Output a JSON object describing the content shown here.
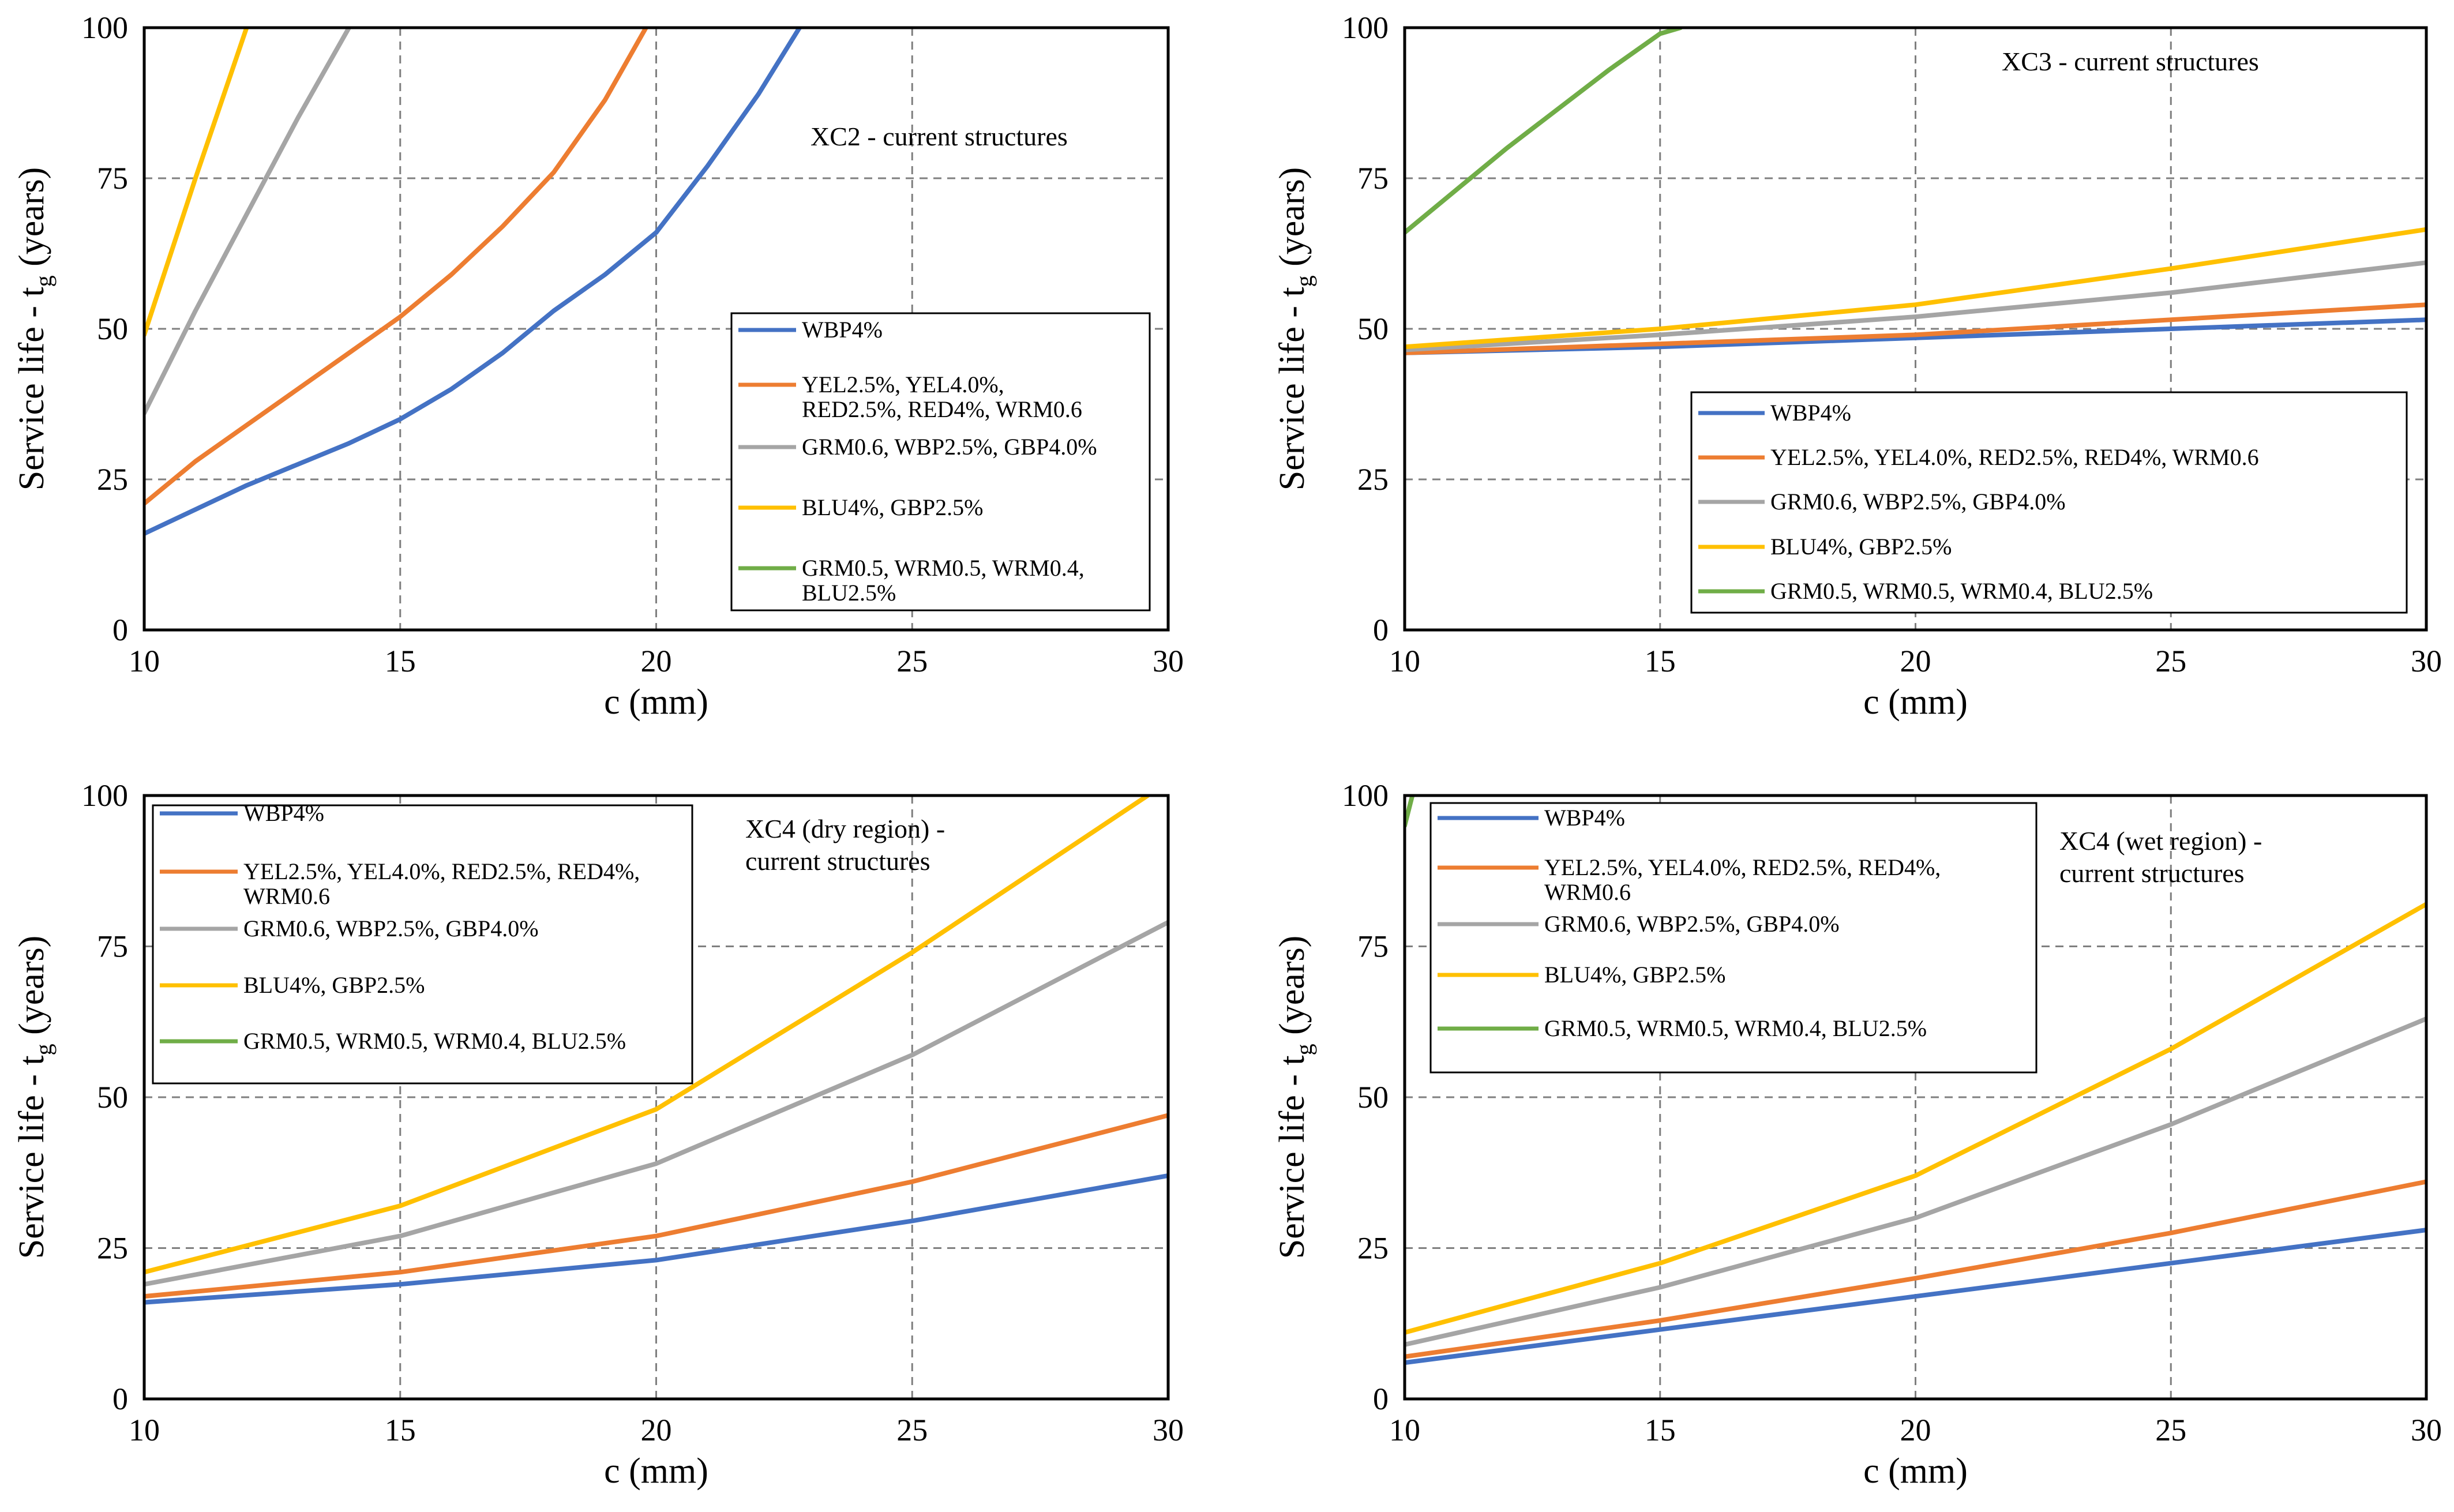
{
  "chart_data": [
    {
      "type": "line",
      "title": "",
      "annotation": [
        "XC2 - current structures"
      ],
      "xlabel": "c (mm)",
      "ylabel": "Service life - t",
      "ylabel_sub": "g",
      "ylabel_tail": " (years)",
      "xlim": [
        10,
        30
      ],
      "ylim": [
        0,
        100
      ],
      "xticks": [
        "10",
        "15",
        "20",
        "25",
        "30"
      ],
      "yticks": [
        "0",
        "25",
        "50",
        "75",
        "100"
      ],
      "grid": true,
      "legend_position": "center-right",
      "series": [
        {
          "name": "WBP4%",
          "color": "#4472c4",
          "label_lines": [
            "WBP4%"
          ],
          "x": [
            10,
            12,
            14,
            15,
            16,
            17,
            18,
            19,
            20,
            21,
            22,
            22.8
          ],
          "y": [
            16,
            24,
            31,
            35,
            40,
            46,
            53,
            59,
            66,
            77,
            89,
            100
          ]
        },
        {
          "name": "YEL2.5%, YEL4.0%, RED2.5%, RED4%, WRM0.6",
          "color": "#ed7d31",
          "label_lines": [
            "YEL2.5%, YEL4.0%,",
            "RED2.5%, RED4%, WRM0.6"
          ],
          "x": [
            10,
            11,
            12,
            13,
            14,
            15,
            16,
            17,
            18,
            19,
            19.8
          ],
          "y": [
            21,
            28,
            34,
            40,
            46,
            52,
            59,
            67,
            76,
            88,
            100
          ]
        },
        {
          "name": "GRM0.6, WBP2.5%, GBP4.0%",
          "color": "#a5a5a5",
          "label_lines": [
            "GRM0.6, WBP2.5%, GBP4.0%"
          ],
          "x": [
            10,
            11,
            12,
            13,
            14
          ],
          "y": [
            36,
            53,
            69,
            85,
            100
          ]
        },
        {
          "name": "BLU4%, GBP2.5%",
          "color": "#ffc000",
          "label_lines": [
            "BLU4%, GBP2.5%"
          ],
          "x": [
            10,
            11,
            12
          ],
          "y": [
            49,
            75,
            100
          ]
        },
        {
          "name": "GRM0.5, WRM0.5, WRM0.4, BLU2.5%",
          "color": "#70ad47",
          "label_lines": [
            "GRM0.5, WRM0.5, WRM0.4,",
            "BLU2.5%"
          ],
          "x": [],
          "y": []
        }
      ]
    },
    {
      "type": "line",
      "title": "",
      "annotation": [
        "XC3 - current structures"
      ],
      "xlabel": "c (mm)",
      "ylabel": "Service life - t",
      "ylabel_sub": "g",
      "ylabel_tail": " (years)",
      "xlim": [
        10,
        30
      ],
      "ylim": [
        0,
        100
      ],
      "xticks": [
        "10",
        "15",
        "20",
        "25",
        "30"
      ],
      "yticks": [
        "0",
        "25",
        "50",
        "75",
        "100"
      ],
      "grid": true,
      "legend_position": "bottom-right",
      "series": [
        {
          "name": "WBP4%",
          "color": "#4472c4",
          "label_lines": [
            "WBP4%"
          ],
          "x": [
            10,
            15,
            20,
            25,
            30
          ],
          "y": [
            46,
            47,
            48.5,
            50,
            51.5
          ]
        },
        {
          "name": "YEL2.5%, YEL4.0%, RED2.5%, RED4%, WRM0.6",
          "color": "#ed7d31",
          "label_lines": [
            "YEL2.5%, YEL4.0%, RED2.5%, RED4%, WRM0.6"
          ],
          "x": [
            10,
            15,
            20,
            25,
            30
          ],
          "y": [
            46,
            47.5,
            49,
            51.5,
            54
          ]
        },
        {
          "name": "GRM0.6, WBP2.5%, GBP4.0%",
          "color": "#a5a5a5",
          "label_lines": [
            "GRM0.6, WBP2.5%, GBP4.0%"
          ],
          "x": [
            10,
            15,
            20,
            25,
            30
          ],
          "y": [
            46.5,
            49,
            52,
            56,
            61
          ]
        },
        {
          "name": "BLU4%, GBP2.5%",
          "color": "#ffc000",
          "label_lines": [
            "BLU4%, GBP2.5%"
          ],
          "x": [
            10,
            15,
            20,
            25,
            30
          ],
          "y": [
            47,
            50,
            54,
            60,
            66.5
          ]
        },
        {
          "name": "GRM0.5, WRM0.5, WRM0.4, BLU2.5%",
          "color": "#70ad47",
          "label_lines": [
            "GRM0.5, WRM0.5, WRM0.4, BLU2.5%"
          ],
          "x": [
            10,
            12,
            14,
            15,
            15.4
          ],
          "y": [
            66,
            80,
            93,
            99,
            100
          ]
        }
      ]
    },
    {
      "type": "line",
      "title": "",
      "annotation": [
        "XC4 (dry region) -",
        "current structures"
      ],
      "xlabel": "c (mm)",
      "ylabel": "Service life - t",
      "ylabel_sub": "g",
      "ylabel_tail": " (years)",
      "xlim": [
        10,
        30
      ],
      "ylim": [
        0,
        100
      ],
      "xticks": [
        "10",
        "15",
        "20",
        "25",
        "30"
      ],
      "yticks": [
        "0",
        "25",
        "50",
        "75",
        "100"
      ],
      "grid": true,
      "legend_position": "top-left",
      "series": [
        {
          "name": "WBP4%",
          "color": "#4472c4",
          "label_lines": [
            "WBP4%"
          ],
          "x": [
            10,
            15,
            20,
            25,
            30
          ],
          "y": [
            16,
            19,
            23,
            29.5,
            37
          ]
        },
        {
          "name": "YEL2.5%, YEL4.0%, RED2.5%, RED4%, WRM0.6",
          "color": "#ed7d31",
          "label_lines": [
            "YEL2.5%, YEL4.0%, RED2.5%, RED4%,",
            "WRM0.6"
          ],
          "x": [
            10,
            15,
            20,
            25,
            30
          ],
          "y": [
            17,
            21,
            27,
            36,
            47
          ]
        },
        {
          "name": "GRM0.6, WBP2.5%, GBP4.0%",
          "color": "#a5a5a5",
          "label_lines": [
            "GRM0.6, WBP2.5%, GBP4.0%"
          ],
          "x": [
            10,
            15,
            20,
            25,
            30
          ],
          "y": [
            19,
            27,
            39,
            57,
            79
          ]
        },
        {
          "name": "BLU4%, GBP2.5%",
          "color": "#ffc000",
          "label_lines": [
            "BLU4%, GBP2.5%"
          ],
          "x": [
            10,
            15,
            20,
            25,
            29.6
          ],
          "y": [
            21,
            32,
            48,
            74,
            100
          ]
        },
        {
          "name": "GRM0.5, WRM0.5, WRM0.4, BLU2.5%",
          "color": "#70ad47",
          "label_lines": [
            "GRM0.5, WRM0.5, WRM0.4, BLU2.5%"
          ],
          "x": [],
          "y": []
        }
      ]
    },
    {
      "type": "line",
      "title": "",
      "annotation": [
        "XC4 (wet region) -",
        "current structures"
      ],
      "xlabel": "c (mm)",
      "ylabel": "Service life - t",
      "ylabel_sub": "g",
      "ylabel_tail": " (years)",
      "xlim": [
        10,
        30
      ],
      "ylim": [
        0,
        100
      ],
      "xticks": [
        "10",
        "15",
        "20",
        "25",
        "30"
      ],
      "yticks": [
        "0",
        "25",
        "50",
        "75",
        "100"
      ],
      "grid": true,
      "legend_position": "top-left",
      "series": [
        {
          "name": "WBP4%",
          "color": "#4472c4",
          "label_lines": [
            "WBP4%"
          ],
          "x": [
            10,
            15,
            20,
            25,
            30
          ],
          "y": [
            6,
            11.5,
            17,
            22.5,
            28
          ]
        },
        {
          "name": "YEL2.5%, YEL4.0%, RED2.5%, RED4%, WRM0.6",
          "color": "#ed7d31",
          "label_lines": [
            "YEL2.5%, YEL4.0%, RED2.5%, RED4%,",
            "WRM0.6"
          ],
          "x": [
            10,
            15,
            20,
            25,
            30
          ],
          "y": [
            7,
            13,
            20,
            27.5,
            36
          ]
        },
        {
          "name": "GRM0.6, WBP2.5%, GBP4.0%",
          "color": "#a5a5a5",
          "label_lines": [
            "GRM0.6, WBP2.5%, GBP4.0%"
          ],
          "x": [
            10,
            15,
            20,
            25,
            30
          ],
          "y": [
            9,
            18.5,
            30,
            45.5,
            63
          ]
        },
        {
          "name": "BLU4%, GBP2.5%",
          "color": "#ffc000",
          "label_lines": [
            "BLU4%, GBP2.5%"
          ],
          "x": [
            10,
            15,
            20,
            25,
            30
          ],
          "y": [
            11,
            22.5,
            37,
            58,
            82
          ]
        },
        {
          "name": "GRM0.5, WRM0.5, WRM0.4, BLU2.5%",
          "color": "#70ad47",
          "label_lines": [
            "GRM0.5, WRM0.5, WRM0.4, BLU2.5%"
          ],
          "x": [
            10,
            10.15
          ],
          "y": [
            95,
            100
          ]
        }
      ]
    }
  ]
}
